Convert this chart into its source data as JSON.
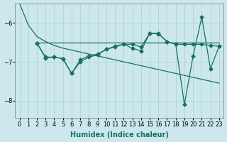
{
  "xlabel": "Humidex (Indice chaleur)",
  "xlim": [
    -0.5,
    23.5
  ],
  "ylim": [
    -8.45,
    -5.5
  ],
  "bg_color": "#cce8ec",
  "grid_color": "#aed4d8",
  "line_color": "#1a7060",
  "line1": {
    "x": [
      0,
      1,
      2,
      3,
      4,
      5,
      6,
      7,
      8,
      9,
      10,
      11,
      12,
      13,
      14,
      15,
      16,
      17,
      18,
      19,
      20,
      21,
      22,
      23
    ],
    "y": [
      -5.5,
      -6.05,
      -6.35,
      -6.48,
      -6.58,
      -6.65,
      -6.7,
      -6.75,
      -6.8,
      -6.85,
      -6.9,
      -6.95,
      -7.0,
      -7.05,
      -7.1,
      -7.15,
      -7.2,
      -7.25,
      -7.3,
      -7.35,
      -7.4,
      -7.45,
      -7.5,
      -7.55
    ]
  },
  "line2": {
    "x": [
      2,
      3,
      4,
      5,
      6,
      7,
      8,
      9,
      10,
      11,
      12,
      13,
      14,
      15,
      16,
      17,
      18,
      19,
      20,
      21,
      22,
      23
    ],
    "y": [
      -6.5,
      -6.5,
      -6.5,
      -6.5,
      -6.5,
      -6.5,
      -6.5,
      -6.5,
      -6.5,
      -6.5,
      -6.5,
      -6.5,
      -6.5,
      -6.5,
      -6.5,
      -6.5,
      -6.5,
      -6.5,
      -6.5,
      -6.5,
      -6.5,
      -6.5
    ]
  },
  "line3": {
    "x": [
      2,
      3,
      4,
      5,
      6,
      7,
      8,
      9,
      10,
      11,
      12,
      13,
      14,
      15,
      16,
      17,
      18,
      19,
      20,
      21,
      22,
      23
    ],
    "y": [
      -6.52,
      -6.9,
      -6.88,
      -6.92,
      -7.3,
      -6.95,
      -6.85,
      -6.8,
      -6.68,
      -6.6,
      -6.55,
      -6.65,
      -6.72,
      -6.27,
      -6.27,
      -6.48,
      -6.55,
      -8.1,
      -6.85,
      -5.85,
      -7.18,
      -6.6
    ]
  },
  "line4": {
    "x": [
      2,
      3,
      4,
      5,
      6,
      7,
      8,
      9,
      10,
      11,
      12,
      13,
      14,
      15,
      16,
      17,
      18,
      19,
      20,
      21,
      22,
      23
    ],
    "y": [
      -6.52,
      -6.88,
      -6.88,
      -6.92,
      -7.3,
      -7.0,
      -6.88,
      -6.82,
      -6.68,
      -6.62,
      -6.55,
      -6.55,
      -6.62,
      -6.27,
      -6.28,
      -6.48,
      -6.55,
      -6.55,
      -6.55,
      -6.55,
      -6.58,
      -6.6
    ]
  },
  "xticks": [
    0,
    1,
    2,
    3,
    4,
    5,
    6,
    7,
    8,
    9,
    10,
    11,
    12,
    13,
    14,
    15,
    16,
    17,
    18,
    19,
    20,
    21,
    22,
    23
  ],
  "yticks": [
    -8,
    -7,
    -6
  ]
}
